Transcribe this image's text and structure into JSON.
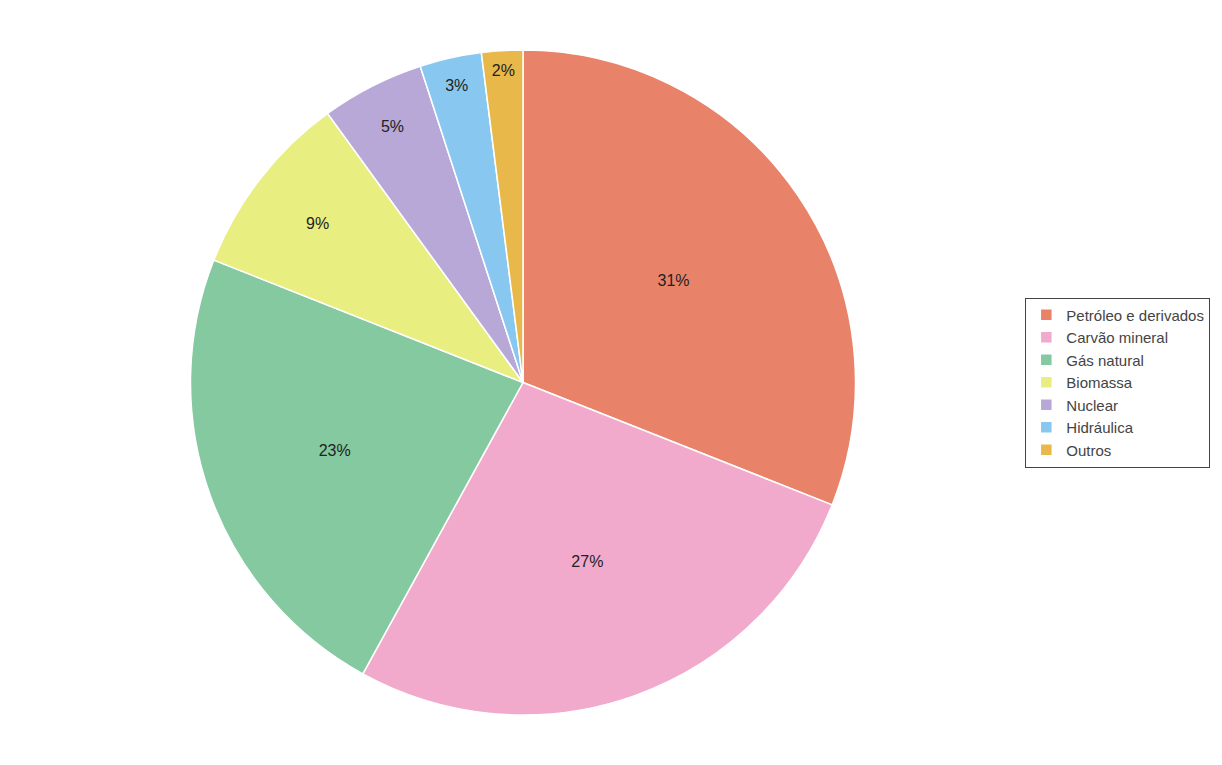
{
  "chart_data": {
    "type": "pie",
    "categories": [
      "Petróleo e derivados",
      "Carvão mineral",
      "Gás natural",
      "Biomassa",
      "Nuclear",
      "Hidráulica",
      "Outros"
    ],
    "values": [
      31,
      27,
      23,
      9,
      5,
      3,
      2
    ],
    "value_labels": [
      "31%",
      "27%",
      "23%",
      "9%",
      "5%",
      "3%",
      "2%"
    ],
    "colors": [
      "#E8836A",
      "#F2AACC",
      "#84C9A0",
      "#E8EE80",
      "#B8A8D8",
      "#88C8F0",
      "#E8B84B"
    ],
    "data_labels": true,
    "legend": "right"
  }
}
